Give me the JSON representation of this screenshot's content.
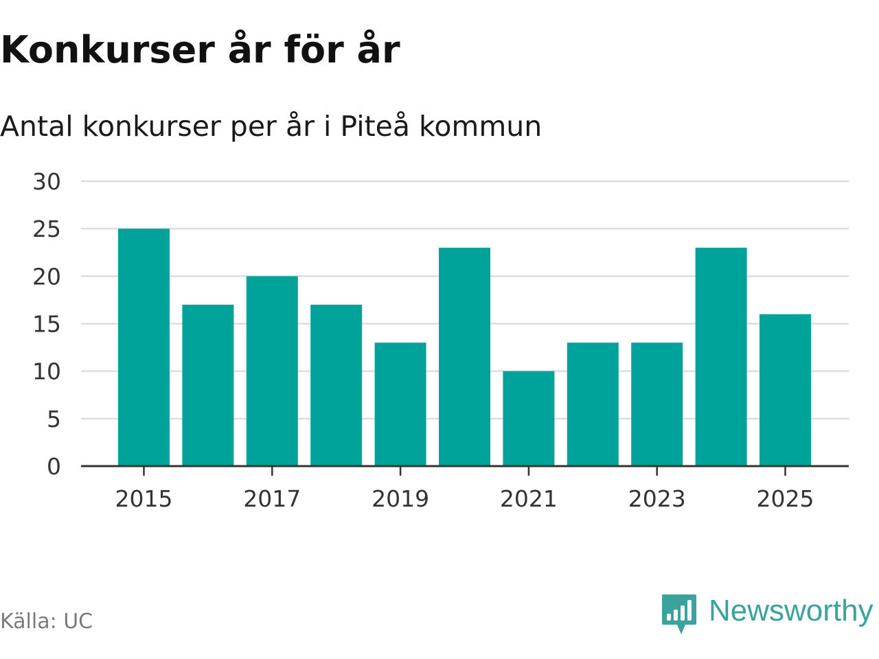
{
  "header": {
    "title": "Konkurser år för år",
    "subtitle": "Antal konkurser per år i Piteå kommun"
  },
  "footer": {
    "source": "Källa: UC",
    "brand_name": "Newsworthy",
    "brand_icon": "newsworthy-logo-icon"
  },
  "colors": {
    "bar": "#00a39a",
    "grid": "#dddddd",
    "axis": "#333333",
    "tick_text": "#333333",
    "brand": "#3aa39b"
  },
  "chart_data": {
    "type": "bar",
    "categories": [
      "2015",
      "2016",
      "2017",
      "2018",
      "2019",
      "2020",
      "2021",
      "2022",
      "2023",
      "2024",
      "2025"
    ],
    "values": [
      25,
      17,
      20,
      17,
      13,
      23,
      10,
      13,
      13,
      23,
      16
    ],
    "x_tick_labels": [
      "2015",
      "2017",
      "2019",
      "2021",
      "2023",
      "2025"
    ],
    "y_ticks": [
      0,
      5,
      10,
      15,
      20,
      25,
      30
    ],
    "ylim": [
      0,
      30
    ],
    "xlabel": "",
    "ylabel": "",
    "grid": true,
    "legend": false
  }
}
